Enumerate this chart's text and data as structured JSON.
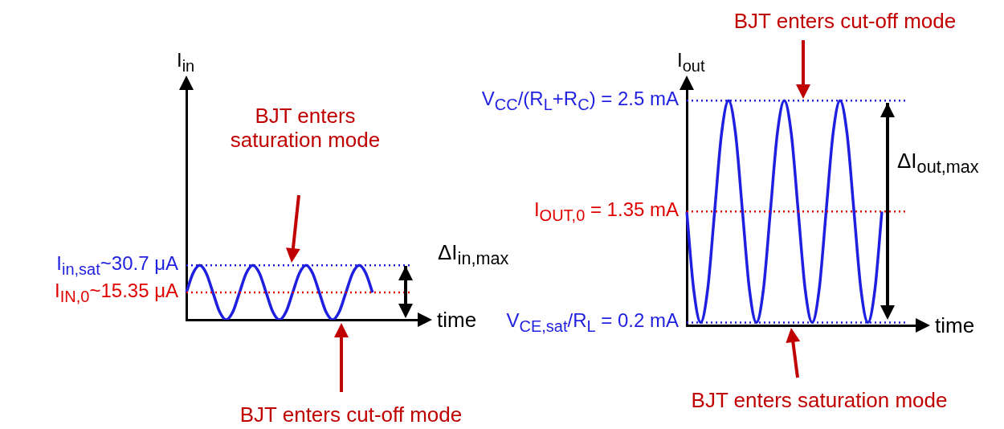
{
  "chart_data": [
    {
      "type": "line",
      "ylabel": "I$_{in}$",
      "xlabel": "time",
      "categories": [
        null,
        null,
        null,
        null,
        null,
        null,
        null,
        null,
        null,
        null,
        null,
        null,
        null,
        null,
        null,
        null,
        null,
        null,
        null,
        null,
        null,
        null,
        null,
        null,
        null,
        null,
        null,
        null,
        null,
        null,
        null,
        null,
        null,
        null,
        null,
        null,
        null
      ],
      "series": [
        {
          "color": "#1f1fe0",
          "values": [
            15.35,
            26.2,
            30.7,
            26.2,
            15.35,
            4.5,
            0,
            4.5,
            15.35,
            26.2,
            30.7,
            26.2,
            15.35,
            4.5,
            0,
            4.5,
            15.35,
            26.2,
            30.7,
            26.2,
            15.35,
            4.5,
            0,
            4.5,
            15.35,
            26.2,
            30.7,
            26.2,
            15.35,
            null,
            null,
            null,
            null,
            null,
            null,
            null,
            null
          ]
        }
      ],
      "ylim": [
        0,
        135
      ],
      "tick_labels": false,
      "grid": false,
      "legend": false,
      "marker": "none",
      "line_style": "solid",
      "ref_lines": [
        {
          "axis": "y",
          "value": 30.7,
          "label": "I$_{in,sat}$~30.7 μA",
          "color": "#1f1fe0",
          "line_style": "dotted"
        },
        {
          "axis": "y",
          "value": 15.35,
          "label": "I$_{IN,0}$~15.35 μA",
          "color": "#e00000",
          "line_style": "dotted"
        }
      ],
      "annotations": [
        "BJT enters saturation mode",
        "BJT enters cut-off mode",
        "ΔI$_{in,max}$"
      ]
    },
    {
      "type": "line",
      "ylabel": "I$_{out}$",
      "xlabel": "time",
      "categories": [
        null,
        null,
        null,
        null,
        null,
        null,
        null,
        null,
        null,
        null,
        null,
        null,
        null,
        null,
        null,
        null,
        null,
        null,
        null,
        null,
        null,
        null,
        null,
        null,
        null,
        null,
        null,
        null,
        null,
        null,
        null,
        null,
        null,
        null,
        null
      ],
      "series": [
        {
          "color": "#1f1fe0",
          "values": [
            1.35,
            0.54,
            0.2,
            0.54,
            1.35,
            2.16,
            2.5,
            2.16,
            1.35,
            0.54,
            0.2,
            0.54,
            1.35,
            2.16,
            2.5,
            2.16,
            1.35,
            0.54,
            0.2,
            0.54,
            1.35,
            2.16,
            2.5,
            2.16,
            1.35,
            0.54,
            0.2,
            0.54,
            1.35,
            null,
            null,
            null,
            null,
            null,
            null
          ]
        }
      ],
      "ylim": [
        0.17,
        2.71
      ],
      "tick_labels": false,
      "grid": false,
      "legend": false,
      "marker": "none",
      "line_style": "solid",
      "ref_lines": [
        {
          "axis": "y",
          "value": 2.5,
          "label": "V$_{CC}$/(R$_{L}$+R$_{C}$) = 2.5 mA",
          "color": "#1f1fe0",
          "line_style": "dotted"
        },
        {
          "axis": "y",
          "value": 1.35,
          "label": "I$_{OUT,0}$ = 1.35  mA",
          "color": "#e00000",
          "line_style": "dotted"
        },
        {
          "axis": "y",
          "value": 0.2,
          "label": "V$_{CE,sat}$/R$_{L}$ = 0.2 mA",
          "color": "#1f1fe0",
          "line_style": "dotted"
        }
      ],
      "annotations": [
        "BJT enters cut-off mode",
        "BJT enters saturation mode",
        "ΔI$_{out,max}$"
      ]
    }
  ]
}
